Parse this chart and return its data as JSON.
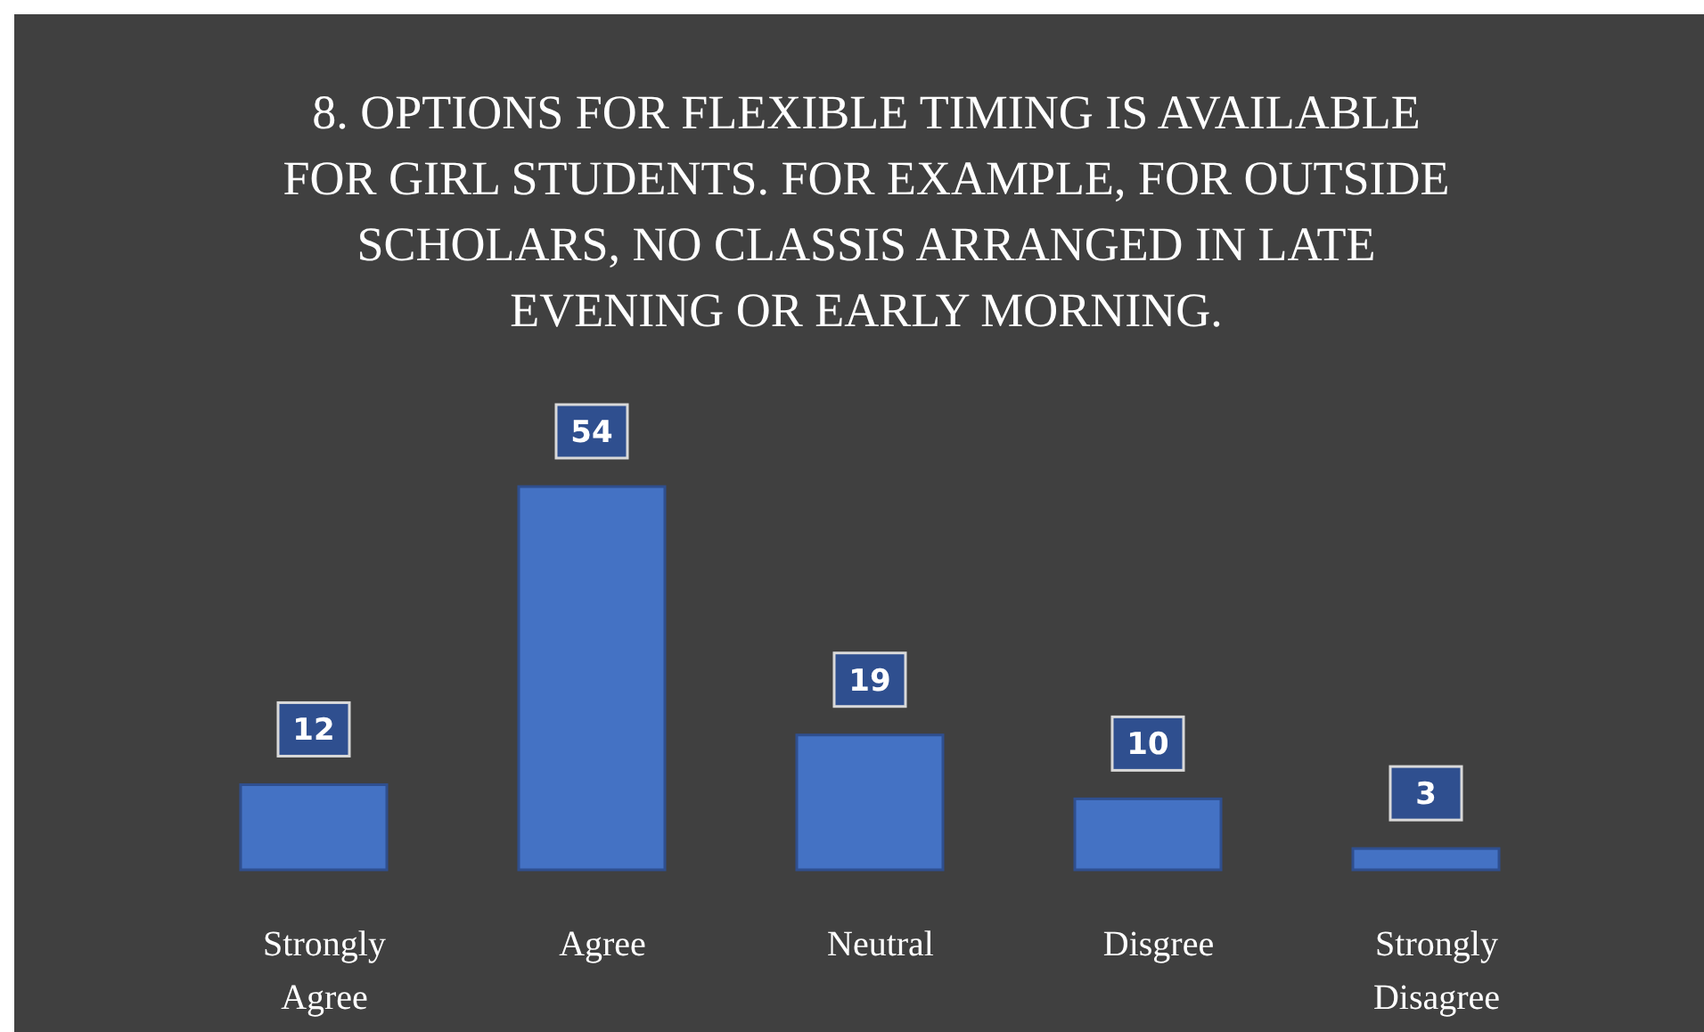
{
  "chart_data": {
    "type": "bar",
    "title": "8. OPTIONS FOR FLEXIBLE TIMING IS AVAILABLE FOR GIRL STUDENTS. FOR EXAMPLE, FOR OUTSIDE SCHOLARS, NO CLASSIS ARRANGED IN LATE EVENING OR EARLY MORNING.",
    "categories": [
      "Strongly Agree",
      "Agree",
      "Neutral",
      "Disgree",
      "Strongly Disagree"
    ],
    "values": [
      12,
      54,
      19,
      10,
      3
    ],
    "color": "#4472c4",
    "data_labels": true
  }
}
